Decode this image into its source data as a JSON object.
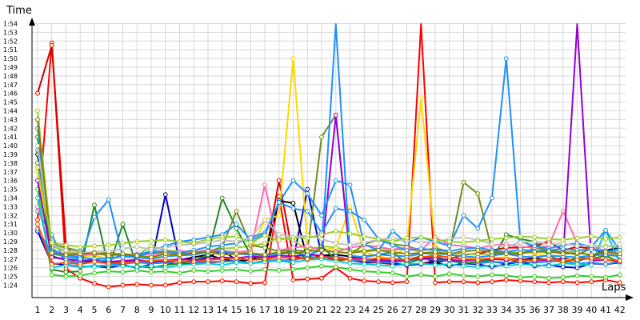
{
  "chart_data": {
    "type": "line",
    "ylabel": "Time",
    "xlabel": "Laps",
    "x": [
      1,
      2,
      3,
      4,
      5,
      6,
      7,
      8,
      9,
      10,
      11,
      12,
      13,
      14,
      15,
      16,
      17,
      18,
      19,
      20,
      21,
      22,
      23,
      24,
      25,
      26,
      27,
      28,
      29,
      30,
      31,
      32,
      33,
      34,
      35,
      36,
      37,
      38,
      39,
      40,
      41,
      42
    ],
    "y_ticks": [
      "1:24",
      "1:25",
      "1:26",
      "1:27",
      "1:28",
      "1:29",
      "1:30",
      "1:31",
      "1:32",
      "1:33",
      "1:34",
      "1:35",
      "1:36",
      "1:37",
      "1:38",
      "1:39",
      "1:40",
      "1:41",
      "1:42",
      "1:43",
      "1:44",
      "1:45",
      "1:46",
      "1:47",
      "1:48",
      "1:49",
      "1:50",
      "1:51",
      "1:52",
      "1:53",
      "1:54"
    ],
    "ylim_seconds": [
      83.5,
      97
    ],
    "grid": true,
    "legend": "none",
    "series": [
      {
        "color": "#ff0000",
        "values": [
          91.5,
          111.8,
          85.9,
          84.8,
          84.2,
          83.8,
          84.0,
          84.1,
          84.0,
          84.0,
          84.3,
          84.4,
          84.4,
          84.5,
          84.4,
          84.2,
          84.3,
          94.2,
          84.6,
          84.7,
          84.8,
          86.0,
          84.8,
          84.5,
          84.4,
          84.3,
          84.4,
          124,
          84.3,
          84.4,
          84.4,
          84.3,
          84.4,
          84.6,
          84.5,
          84.4,
          84.3,
          84.4,
          84.3,
          84.4,
          84.6,
          84.3
        ]
      },
      {
        "color": "#d40000",
        "values": [
          106.0,
          111.5,
          88.5,
          86.8,
          86.9,
          86.5,
          86.4,
          86.7,
          86.5,
          86.6,
          86.4,
          86.5,
          86.6,
          86.7,
          86.8,
          86.9,
          87.0,
          96.0,
          87.3,
          87.0,
          87.4,
          86.8,
          87.0,
          86.6,
          86.6,
          86.4,
          86.3,
          86.5,
          86.8,
          87.0,
          87.5,
          87.6,
          88.0,
          88.3,
          88.3,
          88.5,
          89.0,
          88.0,
          88.4,
          88.2,
          87.5,
          87.4
        ]
      },
      {
        "color": "#0000cc",
        "values": [
          90.2,
          86.5,
          86.3,
          86.1,
          86.2,
          86.0,
          86.3,
          86.0,
          86.4,
          94.4,
          86.6,
          86.8,
          87.2,
          88.0,
          86.9,
          86.5,
          86.7,
          86.8,
          86.9,
          95.0,
          87.4,
          87.3,
          86.9,
          86.6,
          86.8,
          86.5,
          86.3,
          86.4,
          86.6,
          86.2,
          86.5,
          86.4,
          86.1,
          86.4,
          86.7,
          86.2,
          86.3,
          86.1,
          86.0,
          86.5,
          86.4,
          86.6
        ]
      },
      {
        "color": "#000000",
        "values": [
          99.0,
          87.3,
          86.9,
          86.5,
          86.9,
          86.6,
          86.7,
          86.8,
          86.7,
          86.8,
          86.9,
          87.2,
          87.5,
          87.0,
          86.7,
          87.0,
          87.3,
          93.7,
          93.4,
          86.9,
          87.4,
          87.5,
          87.3,
          87.0,
          86.8,
          86.7,
          86.9,
          87.3,
          86.6,
          86.9,
          86.6,
          86.5,
          86.7,
          86.5,
          86.9,
          87.1,
          86.9,
          87.1,
          86.8,
          87.2,
          88.0,
          88.3
        ]
      },
      {
        "color": "#1e90ff",
        "values": [
          92.5,
          89.8,
          86.4,
          86.1,
          86.2,
          86.3,
          86.5,
          86.6,
          86.5,
          86.6,
          86.8,
          86.6,
          86.7,
          86.7,
          86.8,
          86.5,
          86.8,
          86.9,
          86.8,
          87.3,
          87.1,
          87.3,
          86.9,
          86.8,
          86.7,
          86.6,
          86.8,
          87.0,
          86.9,
          86.8,
          86.6,
          86.5,
          86.7,
          86.6,
          86.7,
          86.6,
          86.7,
          86.8,
          86.5,
          86.6,
          86.4,
          86.7
        ]
      },
      {
        "color": "#ffd700",
        "values": [
          97.0,
          87.8,
          87.5,
          87.3,
          87.4,
          87.0,
          87.3,
          87.5,
          87.2,
          87.3,
          87.5,
          87.8,
          87.7,
          87.5,
          87.6,
          87.8,
          91.5,
          92.0,
          110.0,
          88.5,
          88.0,
          88.3,
          93.0,
          87.8,
          87.3,
          87.0,
          88.5,
          105.5,
          88.5,
          87.5,
          87.3,
          87.0,
          87.1,
          87.2,
          87.0,
          87.5,
          87.4,
          86.9,
          87.0,
          87.1,
          87.3,
          87.5
        ]
      },
      {
        "color": "#9acd32",
        "values": [
          104.0,
          88.5,
          87.8,
          87.6,
          87.5,
          87.7,
          87.6,
          87.4,
          88.5,
          88.0,
          87.9,
          87.7,
          88.0,
          88.2,
          88.3,
          88.5,
          88.8,
          89.4,
          89.2,
          88.0,
          88.5,
          88.3,
          88.0,
          87.9,
          88.3,
          88.0,
          88.2,
          87.8,
          87.4,
          87.7,
          87.6,
          87.5,
          87.6,
          87.7,
          87.8,
          87.9,
          87.7,
          87.8,
          87.9,
          88.2,
          88.5,
          88.3
        ]
      },
      {
        "color": "#228b22",
        "values": [
          101.0,
          85.8,
          85.5,
          85.6,
          93.2,
          86.0,
          91.0,
          86.2,
          86.0,
          86.3,
          86.5,
          86.8,
          87.5,
          94.0,
          90.5,
          87.5,
          86.8,
          87.5,
          88.0,
          87.0,
          88.5,
          86.9,
          87.0,
          87.3,
          87.5,
          87.8,
          86.5,
          87.0,
          87.3,
          86.8,
          86.5,
          86.7,
          86.9,
          89.8,
          89.3,
          89.0,
          87.5,
          86.5,
          87.2,
          87.0,
          87.4,
          86.6
        ]
      },
      {
        "color": "#32cd32",
        "values": [
          95.0,
          85.2,
          85.0,
          85.1,
          85.4,
          85.6,
          85.5,
          85.7,
          85.5,
          85.6,
          85.4,
          85.7,
          85.6,
          85.7,
          85.8,
          85.6,
          85.8,
          85.7,
          85.8,
          86.0,
          86.2,
          86.1,
          85.8,
          85.6,
          85.5,
          85.4,
          85.0,
          85.2,
          85.0,
          85.3,
          85.1,
          85.0,
          85.2,
          85.1,
          84.9,
          85.0,
          84.8,
          84.9,
          85.1,
          85.0,
          84.9,
          85.2
        ]
      },
      {
        "color": "#6b8e23",
        "values": [
          98.0,
          88.7,
          88.3,
          87.9,
          87.5,
          87.8,
          87.3,
          87.5,
          87.6,
          87.8,
          87.7,
          87.5,
          87.8,
          88.4,
          92.5,
          88.6,
          88.3,
          87.9,
          88.0,
          87.9,
          101.0,
          103.5,
          87.5,
          88.7,
          89.2,
          88.7,
          88.5,
          88.0,
          88.2,
          87.9,
          95.8,
          94.5,
          88.0,
          87.8,
          87.5,
          88.3,
          88.0,
          87.8,
          87.5,
          88.2,
          88.0,
          87.6
        ]
      },
      {
        "color": "#ff69b4",
        "values": [
          93.0,
          87.9,
          87.6,
          87.4,
          87.6,
          87.5,
          87.4,
          87.6,
          87.5,
          87.7,
          87.9,
          87.8,
          88.0,
          87.9,
          87.8,
          87.9,
          95.5,
          88.0,
          88.3,
          88.5,
          88.0,
          87.8,
          88.3,
          88.6,
          88.4,
          88.1,
          88.3,
          88.0,
          89.5,
          88.6,
          88.5,
          88.2,
          88.6,
          88.7,
          88.4,
          88.3,
          88.5,
          92.5,
          88.8,
          88.3,
          88.0,
          87.6
        ]
      },
      {
        "color": "#00ced1",
        "values": [
          94.0,
          86.0,
          86.3,
          86.2,
          86.1,
          86.3,
          86.2,
          86.1,
          86.2,
          86.0,
          86.3,
          86.4,
          86.5,
          86.3,
          86.6,
          86.5,
          86.7,
          86.8,
          86.6,
          86.9,
          87.0,
          86.8,
          86.5,
          86.4,
          86.3,
          86.2,
          86.4,
          86.5,
          86.3,
          86.4,
          86.2,
          86.1,
          86.3,
          86.2,
          86.4,
          86.3,
          86.2,
          86.5,
          86.4,
          86.3,
          90.3,
          86.5
        ]
      },
      {
        "color": "#9400d3",
        "values": [
          96.0,
          87.2,
          87.0,
          86.8,
          86.9,
          86.7,
          86.8,
          86.9,
          86.7,
          86.8,
          87.0,
          86.9,
          87.0,
          87.2,
          87.1,
          87.3,
          87.2,
          87.4,
          87.3,
          87.5,
          87.4,
          103.5,
          87.2,
          87.0,
          86.9,
          86.8,
          86.9,
          87.1,
          87.0,
          86.9,
          86.8,
          86.9,
          87.0,
          86.9,
          87.0,
          86.8,
          86.9,
          87.0,
          125,
          86.8,
          86.9,
          86.7
        ]
      },
      {
        "color": "#1e90ff",
        "values": [
          102.0,
          88.0,
          87.5,
          87.2,
          87.0,
          87.1,
          87.3,
          87.2,
          87.0,
          87.3,
          87.4,
          87.5,
          87.8,
          87.9,
          87.6,
          87.5,
          87.4,
          87.6,
          87.7,
          87.5,
          88.0,
          125,
          87.4,
          87.2,
          87.5,
          87.4,
          87.3,
          87.6,
          87.7,
          87.5,
          87.3,
          87.2,
          87.4,
          87.6,
          87.3,
          87.2,
          87.4,
          87.3,
          87.2,
          87.4,
          87.5,
          87.3
        ]
      },
      {
        "color": "#1e90ff",
        "values": [
          99.5,
          88.3,
          86.9,
          86.5,
          86.7,
          86.9,
          87.5,
          87.3,
          87.8,
          87.9,
          87.7,
          88.0,
          88.4,
          88.6,
          88.8,
          89.5,
          90.0,
          93.5,
          96.0,
          94.5,
          92.0,
          96.0,
          95.5,
          88.7,
          88.0,
          90.2,
          88.8,
          89.5,
          89.0,
          88.5,
          92.0,
          90.5,
          94.0,
          110.0,
          89.0,
          88.5,
          88.2,
          88.6,
          88.8,
          88.4,
          90.3,
          88.0
        ]
      },
      {
        "color": "#1e90ff",
        "values": [
          90.5,
          87.6,
          87.3,
          87.0,
          91.8,
          93.8,
          87.2,
          87.5,
          87.9,
          88.5,
          89.0,
          89.2,
          89.5,
          89.8,
          91.0,
          89.2,
          89.8,
          93.5,
          92.8,
          92.5,
          90.0,
          92.8,
          92.5,
          91.5,
          89.3,
          88.6,
          88.0,
          88.2,
          88.0,
          87.9,
          88.2,
          88.3,
          88.0,
          87.8,
          88.1,
          87.9,
          88.0,
          88.2,
          88.0,
          88.1,
          87.9,
          88.0
        ]
      },
      {
        "color": "#c0c0c0",
        "values": [
          100.0,
          88.7,
          88.0,
          87.7,
          87.8,
          87.9,
          88.2,
          88.4,
          88.1,
          88.3,
          88.6,
          88.7,
          88.9,
          89.2,
          89.0,
          89.4,
          91.5,
          89.8,
          89.5,
          89.7,
          89.3,
          88.8,
          88.6,
          88.9,
          89.2,
          89.4,
          89.1,
          88.9,
          89.0,
          89.3,
          89.5,
          89.2,
          88.7,
          88.4,
          88.9,
          89.0,
          88.7,
          88.8,
          88.5,
          88.6,
          88.4,
          88.7
        ]
      },
      {
        "color": "#808000",
        "values": [
          103.0,
          87.7,
          87.5,
          87.6,
          87.7,
          87.4,
          87.6,
          87.4,
          87.2,
          87.6,
          87.5,
          87.7,
          87.9,
          87.5,
          87.6,
          87.7,
          87.5,
          87.8,
          87.6,
          87.9,
          88.0,
          87.8,
          87.7,
          87.9,
          88.0,
          87.8,
          87.6,
          87.7,
          87.8,
          87.6,
          87.9,
          88.0,
          87.8,
          87.6,
          87.7,
          87.8,
          87.9,
          87.6,
          87.7,
          87.5,
          87.8,
          87.6
        ]
      },
      {
        "color": "#9acd32",
        "values": [
          97.5,
          88.9,
          88.6,
          88.4,
          88.5,
          88.6,
          88.8,
          89.0,
          89.1,
          89.2,
          89.0,
          88.8,
          89.3,
          89.5,
          89.6,
          88.9,
          89.7,
          89.2,
          89.5,
          89.4,
          89.8,
          90.2,
          89.9,
          89.6,
          89.3,
          89.0,
          89.4,
          89.5,
          89.2,
          89.0,
          88.9,
          89.1,
          89.3,
          89.4,
          89.6,
          89.5,
          89.3,
          89.2,
          89.4,
          89.6,
          89.3,
          89.5
        ]
      },
      {
        "color": "#ff4500",
        "values": [
          91.0,
          86.4,
          86.6,
          86.4,
          86.7,
          86.5,
          86.6,
          86.7,
          86.8,
          86.9,
          86.8,
          86.7,
          86.9,
          87.0,
          87.1,
          86.9,
          87.0,
          87.2,
          87.1,
          87.0,
          87.3,
          87.1,
          87.0,
          86.9,
          87.1,
          87.0,
          86.9,
          87.2,
          87.4,
          87.2,
          87.0,
          86.9,
          87.1,
          87.0,
          86.8,
          86.9,
          87.0,
          86.8,
          86.9,
          87.1,
          86.9,
          86.8
        ]
      }
    ]
  }
}
